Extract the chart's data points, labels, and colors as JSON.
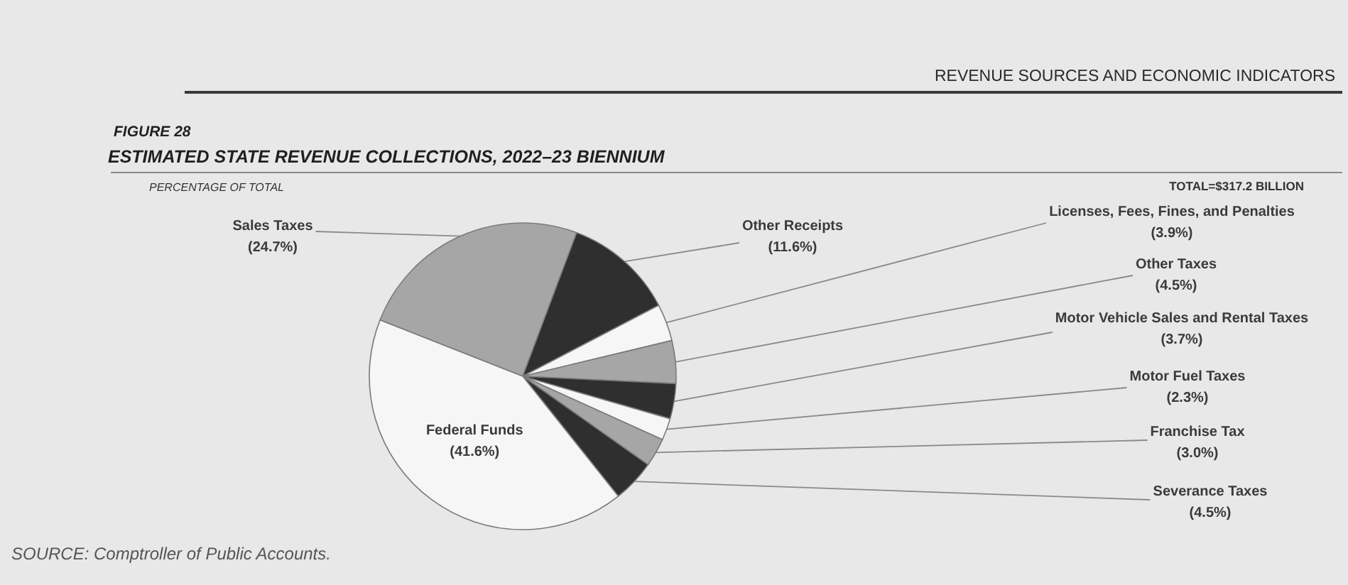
{
  "chart_data": {
    "type": "pie",
    "title": "ESTIMATED STATE REVENUE COLLECTIONS, 2022–23 BIENNIUM",
    "subtitle": "PERCENTAGE OF TOTAL",
    "categories": [
      "Sales Taxes",
      "Other Receipts",
      "Licenses, Fees, Fines, and Penalties",
      "Other Taxes",
      "Motor Vehicle Sales and Rental Taxes",
      "Motor Fuel Taxes",
      "Franchise Tax",
      "Severance Taxes",
      "Federal Funds"
    ],
    "values": [
      24.7,
      11.6,
      3.9,
      4.5,
      3.7,
      2.3,
      3.0,
      4.5,
      41.6
    ],
    "value_labels": [
      "(24.7%)",
      "(11.6%)",
      "(3.9%)",
      "(4.5%)",
      "(3.7%)",
      "(2.3%)",
      "(3.0%)",
      "(4.5%)",
      "(41.6%)"
    ],
    "colors": [
      "#a6a6a6",
      "#2f2f2f",
      "#f6f6f6",
      "#a6a6a6",
      "#2f2f2f",
      "#f6f6f6",
      "#a6a6a6",
      "#2f2f2f",
      "#f6f6f6"
    ],
    "annotations": [
      "REVENUE SOURCES AND ECONOMIC INDICATORS",
      "FIGURE 28",
      "TOTAL=$317.2 BILLION",
      "SOURCE: Comptroller of Public Accounts."
    ]
  }
}
